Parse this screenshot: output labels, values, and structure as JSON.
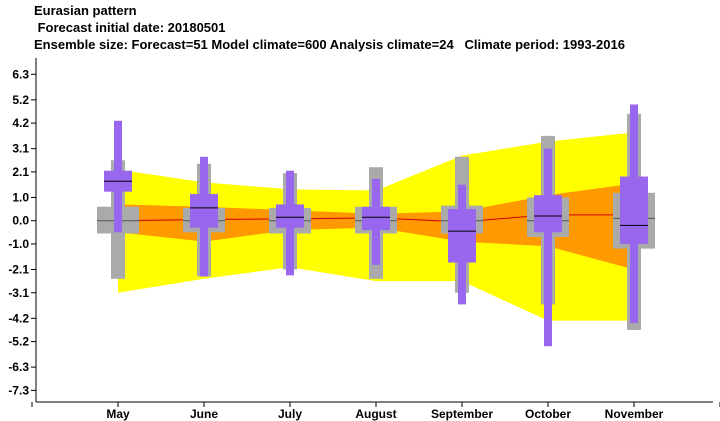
{
  "header": {
    "title": "Eurasian pattern",
    "forecast_date": " Forecast initial date: 20180501",
    "ensemble": "Ensemble size: Forecast=51 Model climate=600 Analysis climate=24   Climate period: 1993-2016"
  },
  "colors": {
    "climate_outer": "#ffff00",
    "climate_inner": "#ff9900",
    "climate_median_line": "#cc0000",
    "model_box": "#aaaaaa",
    "forecast_box": "#9966ee",
    "median_tick": "#000000"
  },
  "chart_data": {
    "type": "box",
    "categories": [
      "May",
      "June",
      "July",
      "August",
      "September",
      "October",
      "November"
    ],
    "y_ticks": [
      6.3,
      5.2,
      4.2,
      3.1,
      2.1,
      1.0,
      0.0,
      -1.0,
      -2.1,
      -3.1,
      -4.2,
      -5.2,
      -6.3,
      -7.3
    ],
    "y_tick_labels": [
      "6.3",
      "5.2",
      "4.2",
      "3.1",
      "2.1",
      "1.0",
      "0.0",
      "-1.0",
      "-2.1",
      "-3.1",
      "-4.2",
      "-5.2",
      "-6.3",
      "-7.3"
    ],
    "ylim": [
      -7.8,
      7.0
    ],
    "analysis_climate_band": {
      "outer_upper": [
        2.2,
        1.65,
        1.35,
        1.3,
        2.8,
        3.4,
        3.8
      ],
      "outer_lower": [
        -3.1,
        -2.5,
        -2.0,
        -2.6,
        -2.6,
        -4.3,
        -4.3
      ],
      "inner_upper": [
        0.7,
        0.6,
        0.45,
        0.3,
        0.4,
        1.1,
        1.6
      ],
      "inner_lower": [
        -0.5,
        -0.9,
        -0.4,
        -0.3,
        -0.9,
        -1.1,
        -2.1
      ],
      "median": [
        0.0,
        0.05,
        0.08,
        0.12,
        -0.05,
        0.25,
        0.25
      ]
    },
    "model_climate": [
      {
        "min": -2.5,
        "q1": -0.55,
        "median": 0.0,
        "q3": 0.6,
        "max": 2.6
      },
      {
        "min": -2.4,
        "q1": -0.5,
        "median": 0.0,
        "q3": 0.55,
        "max": 2.45
      },
      {
        "min": -2.1,
        "q1": -0.55,
        "median": 0.0,
        "q3": 0.55,
        "max": 2.05
      },
      {
        "min": -2.5,
        "q1": -0.55,
        "median": 0.0,
        "q3": 0.6,
        "max": 2.3
      },
      {
        "min": -3.1,
        "q1": -0.55,
        "median": 0.0,
        "q3": 0.65,
        "max": 2.75
      },
      {
        "min": -3.6,
        "q1": -0.7,
        "median": 0.0,
        "q3": 1.0,
        "max": 3.65
      },
      {
        "min": -4.7,
        "q1": -1.2,
        "median": 0.1,
        "q3": 1.2,
        "max": 4.6
      }
    ],
    "forecast": [
      {
        "min": -0.5,
        "q1": 1.25,
        "median": 1.7,
        "q3": 2.15,
        "max": 4.3
      },
      {
        "min": -2.4,
        "q1": -0.3,
        "median": 0.55,
        "q3": 1.15,
        "max": 2.75
      },
      {
        "min": -2.35,
        "q1": -0.3,
        "median": 0.15,
        "q3": 0.7,
        "max": 2.15
      },
      {
        "min": -1.9,
        "q1": -0.4,
        "median": 0.15,
        "q3": 0.6,
        "max": 1.8
      },
      {
        "min": -3.6,
        "q1": -1.8,
        "median": -0.45,
        "q3": 0.5,
        "max": 1.55
      },
      {
        "min": -5.4,
        "q1": -0.5,
        "median": 0.2,
        "q3": 1.1,
        "max": 3.1
      },
      {
        "min": -4.4,
        "q1": -1.0,
        "median": -0.2,
        "q3": 1.9,
        "max": 5.0
      }
    ]
  }
}
